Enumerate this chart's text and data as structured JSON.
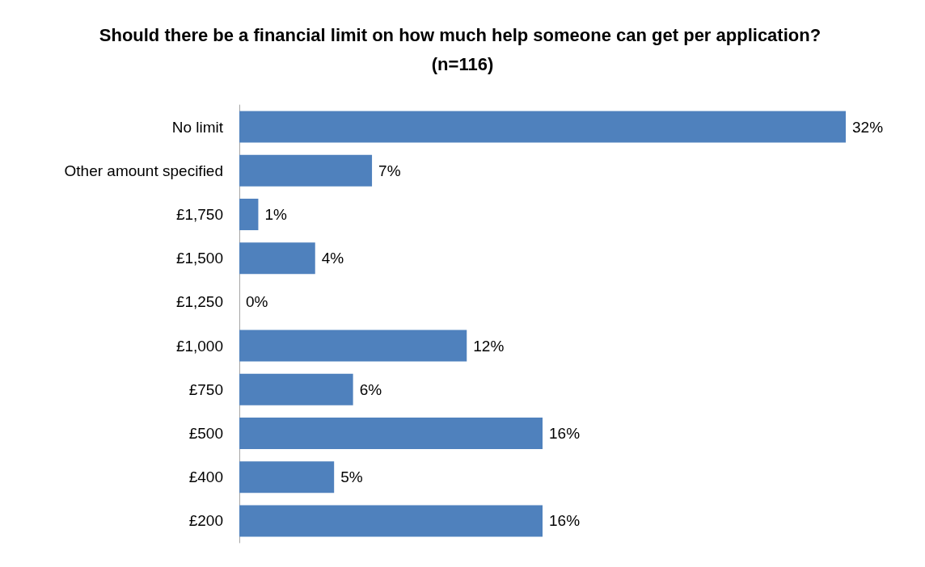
{
  "chart_data": {
    "type": "bar",
    "orientation": "horizontal",
    "title": "Should there be a financial limit on how much help someone can get per application? (n=116)",
    "categories": [
      "No limit",
      "Other amount specified",
      "£1,750",
      "£1,500",
      "£1,250",
      "£1,000",
      "£750",
      "£500",
      "£400",
      "£200"
    ],
    "values": [
      32,
      7,
      1,
      4,
      0,
      12,
      6,
      16,
      5,
      16
    ],
    "value_labels": [
      "32%",
      "7%",
      "1%",
      "4%",
      "0%",
      "12%",
      "6%",
      "16%",
      "5%",
      "16%"
    ],
    "color": "#4f81bd"
  }
}
